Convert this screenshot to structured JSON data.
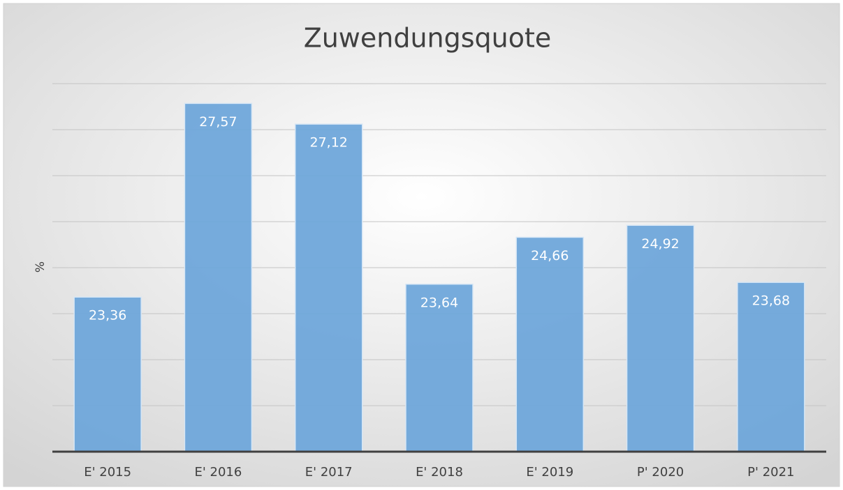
{
  "chart_data": {
    "type": "bar",
    "title": "Zuwendungsquote",
    "y_label": "%",
    "categories": [
      "E' 2015",
      "E' 2016",
      "E' 2017",
      "E' 2018",
      "E' 2019",
      "P' 2020",
      "P' 2021"
    ],
    "values": [
      23.36,
      27.57,
      27.12,
      23.64,
      24.66,
      24.92,
      23.68
    ],
    "value_labels": [
      "23,36",
      "27,57",
      "27,12",
      "23,64",
      "24,66",
      "24,92",
      "23,68"
    ],
    "color": "#6fa6da",
    "ylim": [
      20,
      28
    ],
    "yticks": [
      20,
      21,
      22,
      23,
      24,
      25,
      26,
      27,
      28
    ],
    "grid": true
  }
}
